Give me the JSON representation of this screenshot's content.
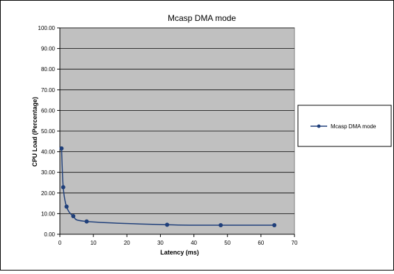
{
  "chart_data": {
    "type": "line",
    "title": "Mcasp DMA mode",
    "xlabel": "Latency (ms)",
    "ylabel": "CPU Load (Percentage)",
    "xlim": [
      0,
      70
    ],
    "ylim": [
      0,
      100
    ],
    "x_ticks": [
      "0",
      "10",
      "20",
      "30",
      "40",
      "50",
      "60",
      "70"
    ],
    "y_ticks": [
      "0.00",
      "10.00",
      "20.00",
      "30.00",
      "40.00",
      "50.00",
      "60.00",
      "70.00",
      "80.00",
      "90.00",
      "100.00"
    ],
    "grid": "horizontal",
    "legend": "right",
    "plot_background": "#c0c0c0",
    "series": [
      {
        "name": "Mcasp DMA mode",
        "color": "#1f3f7a",
        "marker": "circle",
        "smooth": true,
        "x": [
          0.5,
          1,
          2,
          4,
          8,
          32,
          48,
          64
        ],
        "y": [
          41.6,
          22.8,
          13.4,
          8.8,
          6.2,
          4.6,
          4.4,
          4.4
        ]
      }
    ]
  }
}
